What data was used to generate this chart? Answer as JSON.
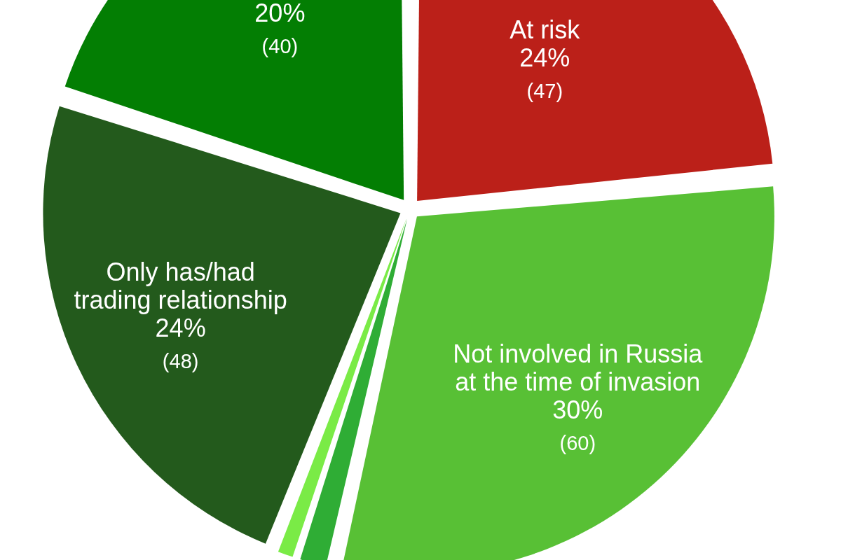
{
  "chart_data": {
    "type": "pie",
    "categories": [
      "At risk",
      "Not involved in Russia at the time of invasion",
      null,
      null,
      "Only has/had trading relationship",
      null
    ],
    "values": [
      23.5,
      30,
      1.5,
      1,
      24,
      20
    ],
    "colors": [
      "#bb2019",
      "#58c035",
      "#2fad35",
      "#7aeb46",
      "#235a1c",
      "#037e03"
    ],
    "value_labels": [
      "24% (47)",
      "30% (60)",
      null,
      null,
      "24% (48)",
      "20% (40)"
    ]
  }
}
